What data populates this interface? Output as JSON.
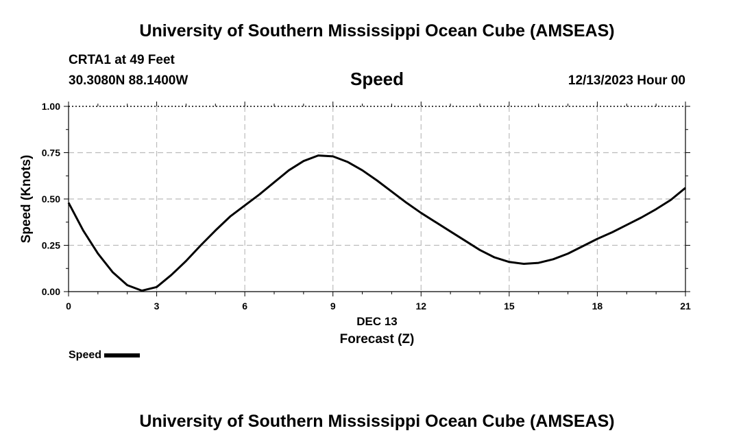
{
  "header": {
    "title": "University of Southern Mississippi Ocean Cube (AMSEAS)",
    "station": "CRTA1 at 49 Feet",
    "coords": "30.3080N  88.1400W",
    "datetime": "12/13/2023 Hour 00"
  },
  "footer": {
    "title": "University of Southern Mississippi Ocean Cube (AMSEAS)"
  },
  "legend": {
    "label": "Speed"
  },
  "chart_data": {
    "type": "line",
    "title": "Speed",
    "xlabel": "Forecast (Z)",
    "xsublabel": "DEC 13",
    "ylabel": "Speed (Knots)",
    "xlim": [
      0,
      21
    ],
    "ylim": [
      0,
      1.0
    ],
    "xticks": [
      0,
      3,
      6,
      9,
      12,
      15,
      18,
      21
    ],
    "xtick_labels": [
      "0",
      "3",
      "6",
      "9",
      "12",
      "15",
      "18",
      "21"
    ],
    "yticks": [
      0,
      0.25,
      0.5,
      0.75,
      1.0
    ],
    "ytick_labels": [
      "0.00",
      "0.25",
      "0.50",
      "0.75",
      "1.00"
    ],
    "grid": true,
    "series": [
      {
        "name": "Speed",
        "x": [
          0,
          0.5,
          1,
          1.5,
          2,
          2.5,
          3,
          3.5,
          4,
          4.5,
          5,
          5.5,
          6,
          6.5,
          7,
          7.5,
          8,
          8.5,
          9,
          9.5,
          10,
          10.5,
          11,
          11.5,
          12,
          12.5,
          13,
          13.5,
          14,
          14.5,
          15,
          15.5,
          16,
          16.5,
          17,
          17.5,
          18,
          18.5,
          19,
          19.5,
          20,
          20.5,
          21
        ],
        "values": [
          0.48,
          0.33,
          0.205,
          0.105,
          0.035,
          0.005,
          0.025,
          0.09,
          0.165,
          0.25,
          0.33,
          0.405,
          0.465,
          0.525,
          0.59,
          0.655,
          0.705,
          0.735,
          0.73,
          0.7,
          0.655,
          0.6,
          0.54,
          0.48,
          0.425,
          0.375,
          0.325,
          0.275,
          0.225,
          0.185,
          0.16,
          0.15,
          0.155,
          0.175,
          0.205,
          0.245,
          0.285,
          0.32,
          0.36,
          0.4,
          0.445,
          0.495,
          0.56
        ]
      }
    ]
  }
}
